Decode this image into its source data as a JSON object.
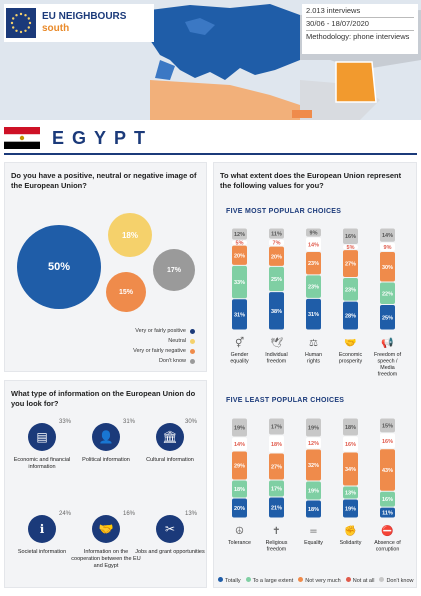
{
  "brand": {
    "title": "EU NEIGHBOURS",
    "subtitle": "south"
  },
  "meta": {
    "interviews": "2.013 interviews",
    "dates": "30/06 - 18/07/2020",
    "methodology": "Methodology: phone interviews"
  },
  "country": {
    "name": "EGYPT"
  },
  "colors": {
    "navy": "#1b3a7a",
    "blue": "#1f5da8",
    "yellow": "#f5d16b",
    "orange": "#ef8b4b",
    "gray": "#9a9a9a",
    "green": "#7fcfa3",
    "red": "#e05a4b",
    "lightgray": "#c8c8c8"
  },
  "image_question": {
    "title": "Do you have a positive, neutral or negative image of the European Union?",
    "bubbles": [
      {
        "label": "50%",
        "value": 50,
        "color": "#1f5da8"
      },
      {
        "label": "18%",
        "value": 18,
        "color": "#f5d16b"
      },
      {
        "label": "17%",
        "value": 17,
        "color": "#9a9a9a"
      },
      {
        "label": "15%",
        "value": 15,
        "color": "#ef8b4b"
      }
    ],
    "legend": [
      "Very or fairly positive",
      "Neutral",
      "Very or fairly negative",
      "Don't know"
    ]
  },
  "info_question": {
    "title": "What type of information on the European Union do you look for?",
    "items": [
      {
        "label": "Economic and financial information",
        "pct": "33%",
        "value": 33,
        "icon": "newspaper-icon",
        "glyph": "▤"
      },
      {
        "label": "Political information",
        "pct": "31%",
        "value": 31,
        "icon": "speaker-icon",
        "glyph": "👤"
      },
      {
        "label": "Cultural information",
        "pct": "30%",
        "value": 30,
        "icon": "museum-icon",
        "glyph": "🏛"
      },
      {
        "label": "Societal information",
        "pct": "24%",
        "value": 24,
        "icon": "info-icon",
        "glyph": "ℹ"
      },
      {
        "label": "Information on the cooperation between the EU and Egypt",
        "pct": "16%",
        "value": 16,
        "icon": "handshake-icon",
        "glyph": "🤝"
      },
      {
        "label": "Jobs and grant opportunities",
        "pct": "13%",
        "value": 13,
        "icon": "tools-icon",
        "glyph": "✂"
      }
    ]
  },
  "values_question": {
    "title": "To what extent does the European Union represent the following values for you?",
    "most_title": "FIVE MOST POPULAR CHOICES",
    "least_title": "FIVE LEAST POPULAR CHOICES",
    "legend": [
      "Totally",
      "To a large extent",
      "Not very much",
      "Not at all",
      "Don't know"
    ]
  },
  "chart_data": [
    {
      "type": "bar",
      "title": "FIVE MOST POPULAR CHOICES",
      "categories": [
        "Gender equality",
        "Individual freedom",
        "Human rights",
        "Economic prosperity",
        "Freedom of speech / Media freedom"
      ],
      "icons": [
        "gender-icon",
        "dove-icon",
        "human-rights-icon",
        "handshake-icon",
        "megaphone-icon"
      ],
      "series": [
        {
          "name": "Totally",
          "values": [
            31,
            38,
            31,
            28,
            25
          ]
        },
        {
          "name": "To a large extent",
          "values": [
            33,
            25,
            23,
            23,
            22
          ]
        },
        {
          "name": "Not very much",
          "values": [
            20,
            20,
            23,
            27,
            30
          ]
        },
        {
          "name": "Not at all",
          "values": [
            5,
            7,
            14,
            5,
            9
          ]
        },
        {
          "name": "Don't know",
          "values": [
            12,
            11,
            9,
            16,
            14
          ]
        }
      ]
    },
    {
      "type": "bar",
      "title": "FIVE LEAST POPULAR CHOICES",
      "categories": [
        "Tolerance",
        "Religious freedom",
        "Equality",
        "Solidarity",
        "Absence of corruption"
      ],
      "icons": [
        "tolerance-icon",
        "religion-icon",
        "equality-icon",
        "solidarity-icon",
        "corruption-icon"
      ],
      "series": [
        {
          "name": "Totally",
          "values": [
            20,
            21,
            18,
            19,
            11
          ]
        },
        {
          "name": "To a large extent",
          "values": [
            18,
            17,
            19,
            13,
            16
          ]
        },
        {
          "name": "Not very much",
          "values": [
            29,
            27,
            32,
            34,
            43
          ]
        },
        {
          "name": "Not at all",
          "values": [
            14,
            18,
            12,
            16,
            16
          ]
        },
        {
          "name": "Don't know",
          "values": [
            19,
            17,
            19,
            18,
            15
          ]
        }
      ]
    }
  ]
}
